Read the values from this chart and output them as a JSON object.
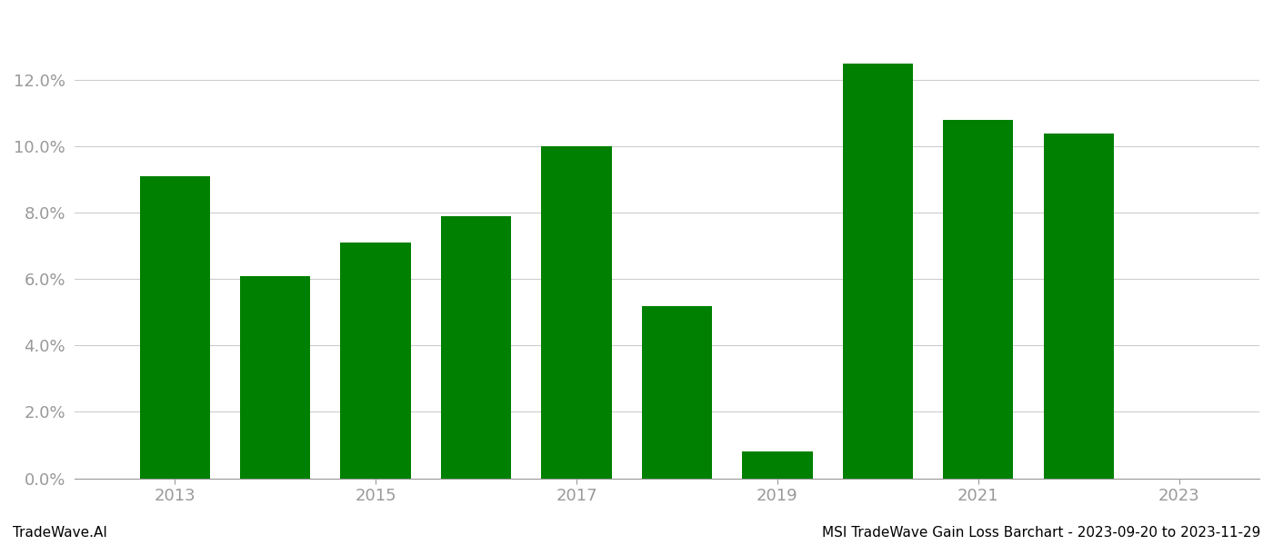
{
  "years": [
    2013,
    2014,
    2015,
    2016,
    2017,
    2018,
    2019,
    2020,
    2021,
    2022
  ],
  "values": [
    0.091,
    0.061,
    0.071,
    0.079,
    0.1,
    0.052,
    0.008,
    0.125,
    0.108,
    0.104
  ],
  "x_tick_years": [
    2013,
    2015,
    2017,
    2019,
    2021,
    2023
  ],
  "bar_color": "#008000",
  "background_color": "#ffffff",
  "grid_color": "#cccccc",
  "axis_color": "#999999",
  "ylabel_color": "#999999",
  "xlabel_color": "#999999",
  "ylim": [
    0,
    0.14
  ],
  "yticks": [
    0.0,
    0.02,
    0.04,
    0.06,
    0.08,
    0.1,
    0.12
  ],
  "footer_left": "TradeWave.AI",
  "footer_right": "MSI TradeWave Gain Loss Barchart - 2023-09-20 to 2023-11-29",
  "footer_fontsize": 11,
  "tick_fontsize": 13,
  "bar_width": 0.7
}
